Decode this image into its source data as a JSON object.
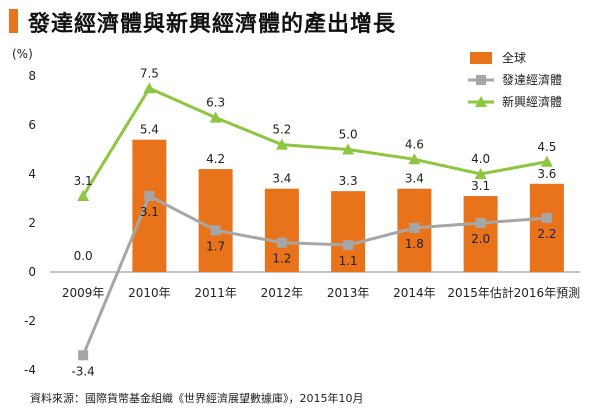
{
  "title": "發達經濟體與新興經濟體的產出增長",
  "source": "資料來源：國際貨幣基金組織《世界經濟展望數據庫》，2015年10月",
  "chart_data": {
    "type": "bar",
    "ylabel": "(%)",
    "ylim": [
      -4,
      8
    ],
    "yticks": [
      -4,
      -2,
      0,
      2,
      4,
      6,
      8
    ],
    "categories": [
      "2009年",
      "2010年",
      "2011年",
      "2012年",
      "2013年",
      "2014年",
      "2015年估計",
      "2016年預測"
    ],
    "legend_position": "top-right",
    "series": [
      {
        "name": "全球",
        "kind": "bar",
        "color": "#e8731a",
        "values": [
          0.0,
          5.4,
          4.2,
          3.4,
          3.3,
          3.4,
          3.1,
          3.6
        ],
        "labels": [
          "0.0",
          "5.4",
          "4.2",
          "3.4",
          "3.3",
          "3.4",
          "3.1",
          "3.6"
        ]
      },
      {
        "name": "發達經濟體",
        "kind": "line",
        "marker": "square",
        "color": "#a6a6a6",
        "values": [
          -3.4,
          3.1,
          1.7,
          1.2,
          1.1,
          1.8,
          2.0,
          2.2
        ],
        "labels": [
          "-3.4",
          "3.1",
          "1.7",
          "1.2",
          "1.1",
          "1.8",
          "2.0",
          "2.2"
        ]
      },
      {
        "name": "新興經濟體",
        "kind": "line",
        "marker": "triangle",
        "color": "#8dc63f",
        "values": [
          3.1,
          7.5,
          6.3,
          5.2,
          5.0,
          4.6,
          4.0,
          4.5
        ],
        "labels": [
          "3.1",
          "7.5",
          "6.3",
          "5.2",
          "5.0",
          "4.6",
          "4.0",
          "4.5"
        ]
      }
    ]
  }
}
